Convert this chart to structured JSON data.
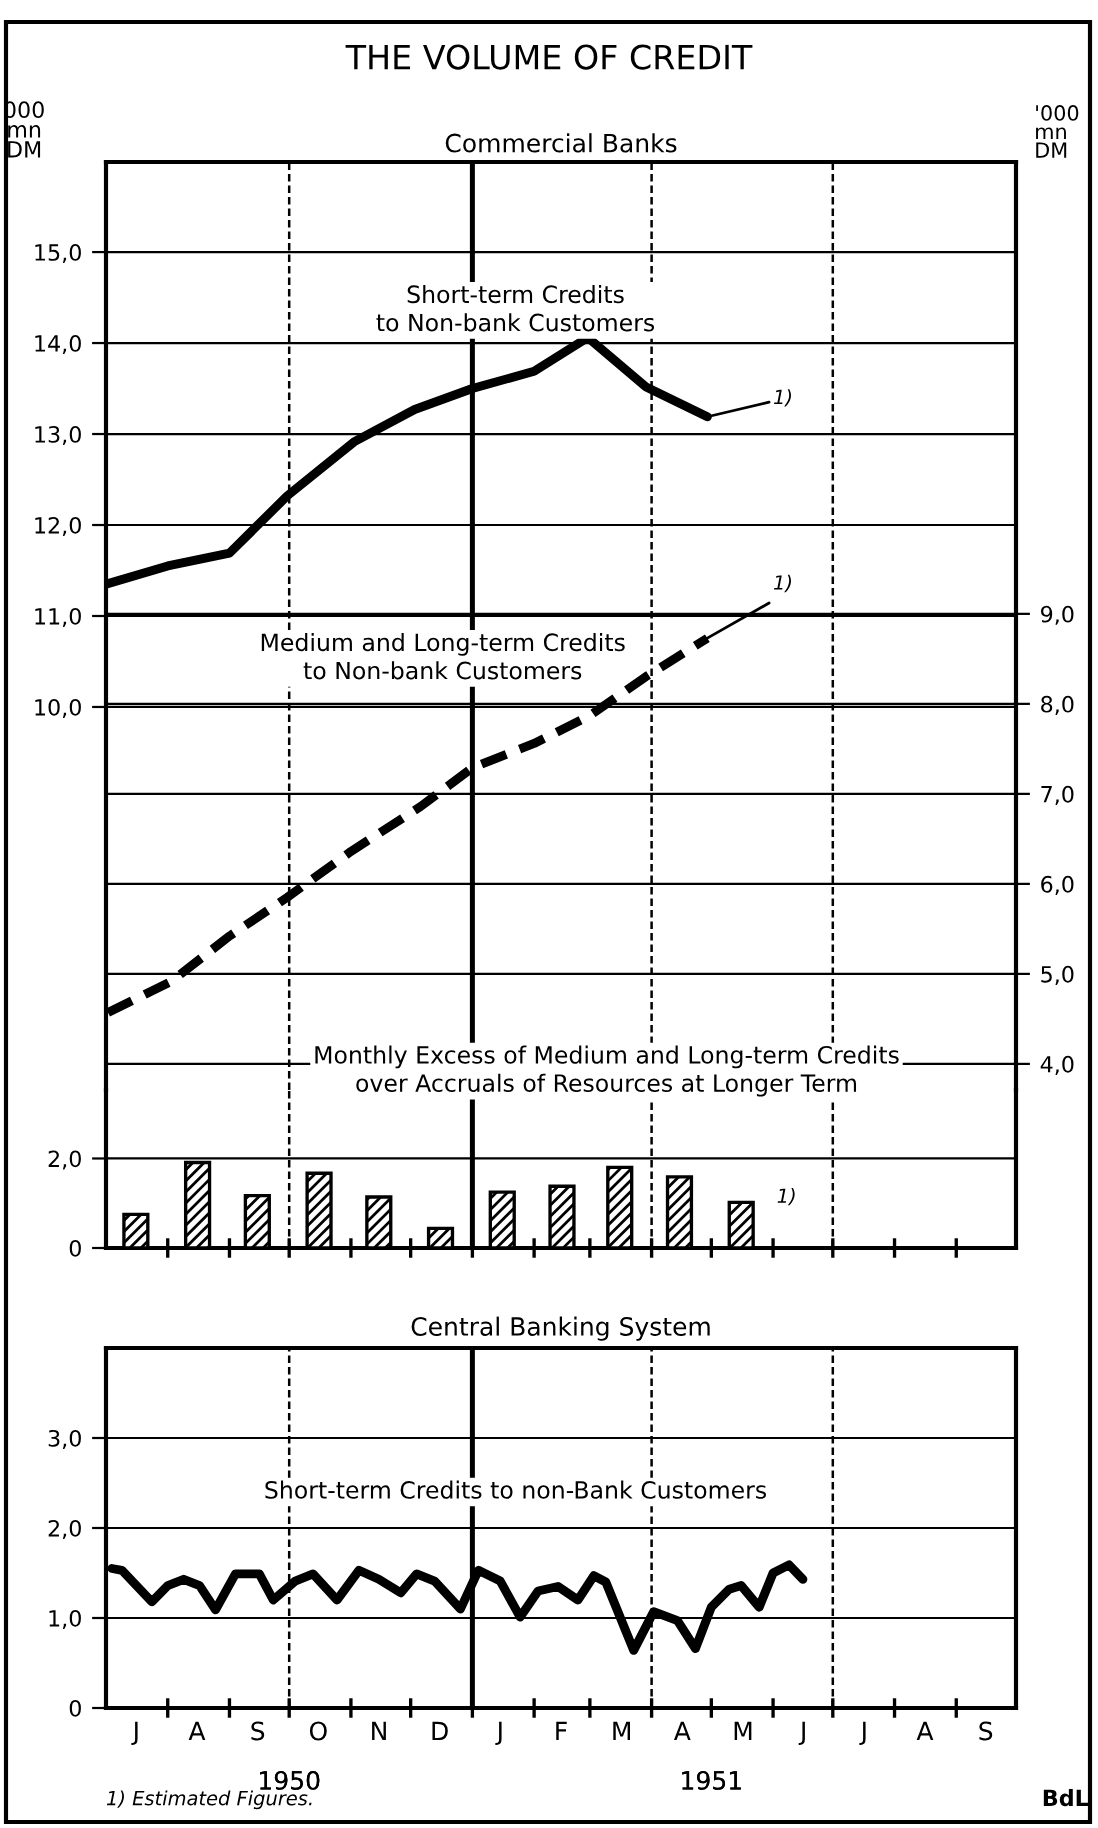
{
  "chart_data": [
    {
      "type": "line",
      "title": "THE VOLUME OF CREDIT",
      "subtitle": "Commercial Banks",
      "ylabel": "000 mn DM",
      "y2label": "'000 mn DM",
      "xlim": [
        "1950-07-01",
        "1951-10-01"
      ],
      "ylim": [
        5.79,
        15.99
      ],
      "yticks": [
        {
          "value": 11,
          "label": "11,0"
        },
        {
          "value": 12,
          "label": "12,0"
        },
        {
          "value": 13,
          "label": "13,0"
        },
        {
          "value": 14,
          "label": "14,0"
        },
        {
          "value": 15,
          "label": "15,0"
        },
        {
          "value": 10,
          "label": "10,0"
        }
      ],
      "y2lim": [
        3.71,
        14.02
      ],
      "y2ticks": [
        {
          "value": 4,
          "label": "4,0"
        },
        {
          "value": 5,
          "label": "5,0"
        },
        {
          "value": 6,
          "label": "6,0"
        },
        {
          "value": 7,
          "label": "7,0"
        },
        {
          "value": 8,
          "label": "8,0"
        },
        {
          "value": 9,
          "label": "9,0"
        }
      ],
      "tick_labels": "y",
      "grid": "y",
      "legend": false,
      "series": [
        {
          "name": "Short-term Credits\nto Non-bank Customers",
          "color": "#000000",
          "line_style": "solid",
          "x": [
            "1950-07-01",
            "1950-08-01",
            "1950-09-01",
            "1950-09-30",
            "1950-11-03",
            "1950-12-03",
            "1951-01-01",
            "1951-02-01",
            "1951-02-28",
            "1951-03-29",
            "1951-04-29"
          ],
          "values": [
            11.35,
            11.55,
            11.69,
            12.32,
            12.92,
            13.27,
            13.5,
            13.69,
            14.06,
            13.52,
            13.19
          ]
        },
        {
          "color": "#000000",
          "line_style": "solid",
          "x": [
            "1951-04-29",
            "1951-05-30"
          ],
          "values": [
            13.19,
            13.35
          ]
        },
        {
          "name": "Medium and Long-term Credits\nto Non-bank Customers",
          "color": "#000000",
          "line_style": "dashed",
          "axis": "y2",
          "x": [
            "1950-07-02",
            "1950-08-03",
            "1950-09-01",
            "1950-09-30",
            "1950-11-01",
            "1950-12-06",
            "1951-01-01",
            "1951-02-01",
            "1951-03-01",
            "1951-03-29",
            "1951-04-29"
          ],
          "values": [
            4.57,
            4.92,
            5.42,
            5.85,
            6.36,
            6.86,
            7.29,
            7.56,
            7.87,
            8.3,
            8.73
          ]
        },
        {
          "color": "#000000",
          "line_style": "solid",
          "axis": "y2",
          "x": [
            "1951-04-29",
            "1951-05-30"
          ],
          "values": [
            8.73,
            9.12
          ]
        }
      ],
      "ref_lines": [
        {
          "axis": "x",
          "value": "1950-10-01",
          "line_style": "dashed"
        },
        {
          "axis": "x",
          "value": "1951-01-01",
          "line_style": "solid"
        },
        {
          "axis": "x",
          "value": "1951-04-01",
          "line_style": "dashed"
        },
        {
          "axis": "x",
          "value": "1951-07-01",
          "line_style": "dashed"
        }
      ],
      "annotations": [
        "1)",
        "1)"
      ]
    },
    {
      "type": "bar",
      "title": "Monthly Excess of Medium and Long-term Credits\nover Accruals of Resources at Longer Term",
      "xlim": [
        "1950-07-01",
        "1951-10-01"
      ],
      "ylim": [
        0,
        3.53
      ],
      "yticks": [
        0,
        {
          "value": 2,
          "label": "2,0"
        }
      ],
      "tick_labels": "y",
      "legend": false,
      "xticks": [
        {
          "value": "1950-08-01",
          "label": null
        },
        {
          "value": "1950-09-01",
          "label": null
        },
        {
          "value": "1950-10-01",
          "label": null
        },
        {
          "value": "1950-11-01",
          "label": null
        },
        {
          "value": "1950-12-01",
          "label": null
        },
        {
          "value": "1951-01-01",
          "label": null
        },
        {
          "value": "1951-02-01",
          "label": null
        },
        {
          "value": "1951-03-01",
          "label": null
        },
        {
          "value": "1951-04-01",
          "label": null
        },
        {
          "value": "1951-05-01",
          "label": null
        },
        {
          "value": "1951-06-01",
          "label": null
        },
        {
          "value": "1951-07-01",
          "label": null
        },
        {
          "value": "1951-08-01",
          "label": null
        },
        {
          "value": "1951-09-01",
          "label": null
        }
      ],
      "series": [
        {
          "color": "#000000",
          "x": [
            "1950-07-16",
            "1950-08-16",
            "1950-09-15",
            "1950-10-16",
            "1950-11-15",
            "1950-12-16",
            "1951-01-16",
            "1951-02-15",
            "1951-03-16",
            "1951-04-15",
            "1951-05-16"
          ],
          "values": [
            0.75,
            1.91,
            1.17,
            1.67,
            1.14,
            0.44,
            1.25,
            1.38,
            1.8,
            1.59,
            1.02
          ]
        }
      ],
      "ref_lines": [
        {
          "axis": "x",
          "value": "1950-10-01",
          "line_style": "dashed"
        },
        {
          "axis": "x",
          "value": "1951-01-01",
          "line_style": "solid"
        },
        {
          "axis": "x",
          "value": "1951-04-01",
          "line_style": "dashed"
        },
        {
          "axis": "x",
          "value": "1951-07-01",
          "line_style": "dashed"
        },
        {
          "axis": "y",
          "value": 2,
          "line_style": "solid"
        }
      ],
      "annotations": [
        "1)"
      ]
    },
    {
      "type": "line",
      "title": "Central Banking System",
      "xlim": [
        "1950-07-01",
        "1951-10-01"
      ],
      "ylim": [
        0,
        4.0
      ],
      "yticks": [
        0,
        {
          "value": 1,
          "label": "1,0"
        },
        {
          "value": 2,
          "label": "2,0"
        },
        {
          "value": 3,
          "label": "3,0"
        }
      ],
      "grid": "y",
      "legend": false,
      "xticks": [
        {
          "value": "1950-08-01",
          "label": null
        },
        {
          "value": "1950-09-01",
          "label": null
        },
        {
          "value": "1950-10-01",
          "label": null
        },
        {
          "value": "1950-11-01",
          "label": null
        },
        {
          "value": "1950-12-01",
          "label": null
        },
        {
          "value": "1951-01-01",
          "label": null
        },
        {
          "value": "1951-02-01",
          "label": null
        },
        {
          "value": "1951-03-01",
          "label": null
        },
        {
          "value": "1951-04-01",
          "label": null
        },
        {
          "value": "1951-05-01",
          "label": null
        },
        {
          "value": "1951-06-01",
          "label": null
        },
        {
          "value": "1951-07-01",
          "label": null
        },
        {
          "value": "1951-08-01",
          "label": null
        },
        {
          "value": "1951-09-01",
          "label": null
        },
        {
          "value": "1950-10-01",
          "label": "1950"
        },
        {
          "value": "1951-05-01",
          "label": "1951"
        }
      ],
      "series": [
        {
          "name": "Short-term Credits to non-Bank Customers",
          "color": "#000000",
          "line_style": "solid",
          "x": [
            "1950-07-04",
            "1950-07-09",
            "1950-07-24",
            "1950-08-01",
            "1950-08-09",
            "1950-08-17",
            "1950-08-25",
            "1950-09-04",
            "1950-09-16",
            "1950-09-23",
            "1950-10-04",
            "1950-10-13",
            "1950-10-25",
            "1950-11-05",
            "1950-11-15",
            "1950-11-26",
            "1950-12-04",
            "1950-12-13",
            "1950-12-26",
            "1951-01-04",
            "1951-01-15",
            "1951-01-25",
            "1951-02-03",
            "1951-02-13",
            "1951-02-23",
            "1951-03-03",
            "1951-03-09",
            "1951-03-23",
            "1951-04-02",
            "1951-04-14",
            "1951-04-23",
            "1951-05-01",
            "1951-05-10",
            "1951-05-16",
            "1951-05-25",
            "1951-06-01",
            "1951-06-09",
            "1951-06-16"
          ],
          "values": [
            1.55,
            1.53,
            1.18,
            1.36,
            1.43,
            1.36,
            1.09,
            1.49,
            1.49,
            1.2,
            1.41,
            1.49,
            1.2,
            1.53,
            1.43,
            1.28,
            1.49,
            1.41,
            1.1,
            1.53,
            1.41,
            1.01,
            1.3,
            1.35,
            1.2,
            1.47,
            1.4,
            0.64,
            1.07,
            0.97,
            0.66,
            1.12,
            1.32,
            1.36,
            1.12,
            1.5,
            1.59,
            1.43
          ]
        }
      ],
      "ref_lines": [
        {
          "axis": "x",
          "value": "1950-10-01",
          "line_style": "dashed"
        },
        {
          "axis": "x",
          "value": "1951-01-01",
          "line_style": "solid"
        },
        {
          "axis": "x",
          "value": "1951-04-01",
          "line_style": "dashed"
        },
        {
          "axis": "x",
          "value": "1951-07-01",
          "line_style": "dashed"
        }
      ],
      "annotations": [
        "J",
        "A",
        "S",
        "O",
        "N",
        "D",
        "J",
        "F",
        "M",
        "A",
        "M",
        "J",
        "J",
        "A",
        "S",
        "1) Estimated Figures.",
        "BdL"
      ]
    }
  ]
}
